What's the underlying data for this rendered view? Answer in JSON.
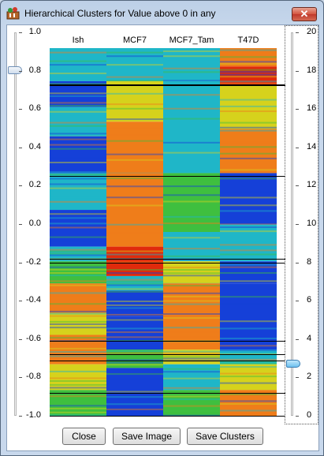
{
  "window": {
    "title": "Hierarchical Clusters for Value above 0 in any"
  },
  "columns": [
    "Ish",
    "MCF7",
    "MCF7_Tam",
    "T47D"
  ],
  "left_slider": {
    "ticks": [
      "1.0",
      "0.8",
      "0.6",
      "0.4",
      "0.2",
      "0.0",
      "-0.2",
      "-0.4",
      "-0.6",
      "-0.8",
      "-1.0"
    ],
    "value": 0.8
  },
  "right_slider": {
    "ticks": [
      "20",
      "18",
      "16",
      "14",
      "12",
      "10",
      "8",
      "6",
      "4",
      "2",
      "0"
    ],
    "value": 3
  },
  "heatmap": {
    "colors": {
      "red": "#e02a0c",
      "orange": "#ef7d1a",
      "yellow": "#d6d21c",
      "green": "#3fbf3f",
      "cyan": "#1fb6c8",
      "blue": "#1540d8"
    },
    "cluster_values": [
      0.73,
      0.25,
      -0.18,
      -0.2,
      -0.61,
      -0.68,
      -0.71,
      -0.88,
      -1.0
    ]
  },
  "buttons": {
    "close": "Close",
    "save_image": "Save Image",
    "save_clusters": "Save Clusters"
  }
}
